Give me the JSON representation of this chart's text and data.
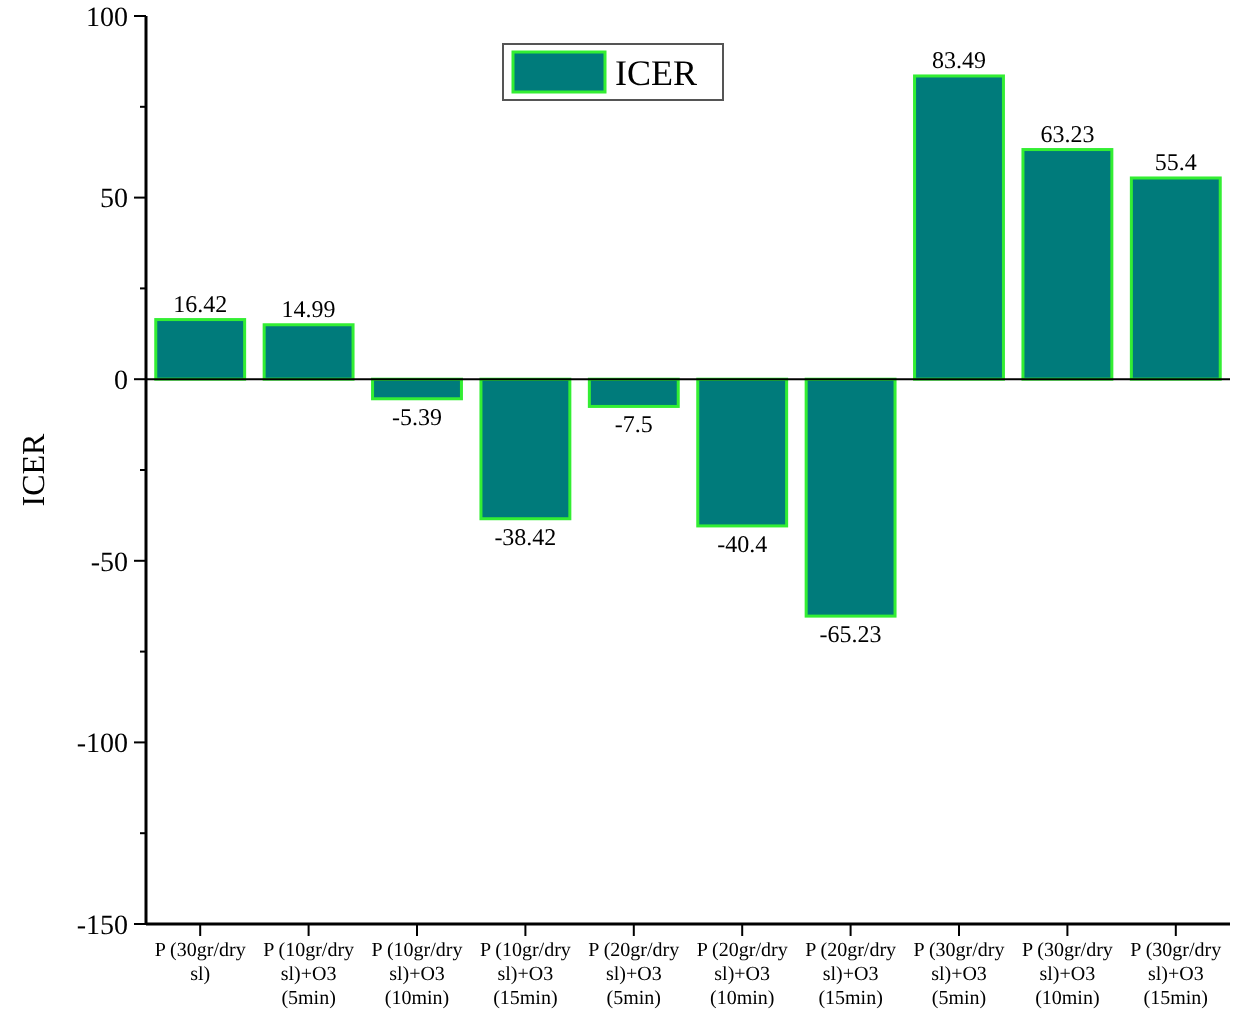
{
  "chart_data": {
    "type": "bar",
    "ylabel": "ICER",
    "categories": [
      "P (30gr/dry sl)",
      "P (10gr/dry sl)+O3 (5min)",
      "P (10gr/dry sl)+O3 (10min)",
      "P (10gr/dry sl)+O3 (15min)",
      "P (20gr/dry sl)+O3 (5min)",
      "P (20gr/dry sl)+O3 (10min)",
      "P (20gr/dry sl)+O3 (15min)",
      "P (30gr/dry sl)+O3 (5min)",
      "P (30gr/dry sl)+O3 (10min)",
      "P (30gr/dry sl)+O3 (15min)"
    ],
    "series": [
      {
        "name": "ICER",
        "color": "#007b7b",
        "values": [
          16.42,
          14.99,
          -5.39,
          -38.42,
          -7.5,
          -40.4,
          -65.23,
          83.49,
          63.23,
          55.4
        ]
      }
    ],
    "ylim": [
      -150,
      100
    ],
    "yticks": [
      -150,
      -100,
      -50,
      0,
      50,
      100
    ],
    "data_labels": true,
    "legend": "top",
    "ref_lines": [
      {
        "axis": "y",
        "value": 0,
        "color": "#000000"
      }
    ]
  }
}
